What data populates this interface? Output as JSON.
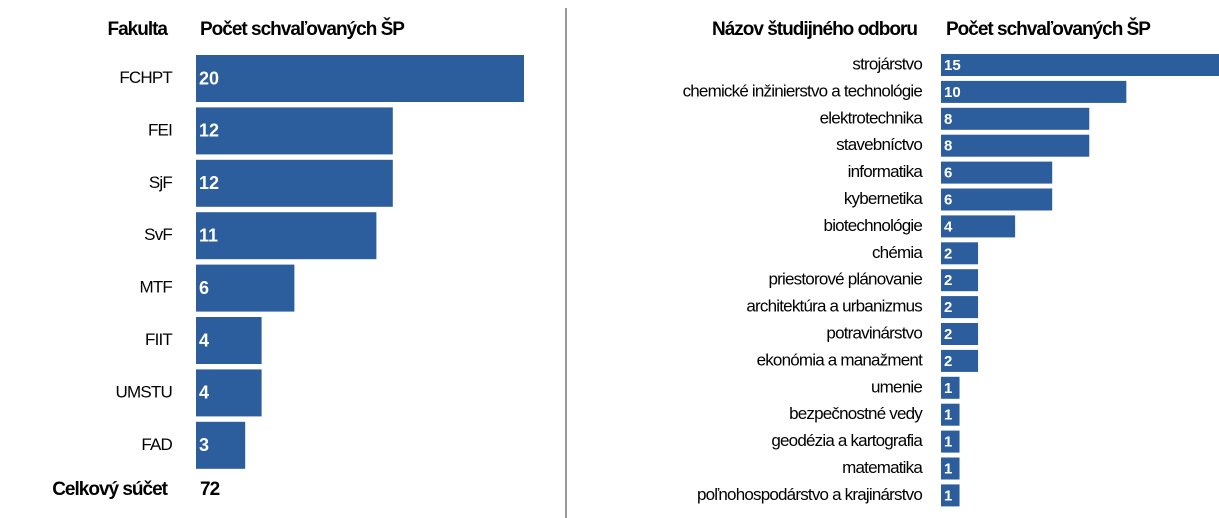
{
  "chart_data": [
    {
      "type": "bar",
      "orientation": "horizontal",
      "category_header": "Fakulta",
      "value_header": "Počet schvaľovaných ŠP",
      "categories": [
        "FCHPT",
        "FEI",
        "SjF",
        "SvF",
        "MTF",
        "FIIT",
        "UMSTU",
        "FAD"
      ],
      "values": [
        20,
        12,
        12,
        11,
        6,
        4,
        4,
        3
      ],
      "color": "#2c5d9c",
      "total_label": "Celkový súčet",
      "total": 72
    },
    {
      "type": "bar",
      "orientation": "horizontal",
      "category_header": "Názov študijného odboru",
      "value_header": "Počet schvaľovaných ŠP",
      "categories": [
        "strojárstvo",
        "chemické inžinierstvo a technológie",
        "elektrotechnika",
        "stavebníctvo",
        "informatika",
        "kybernetika",
        "biotechnológie",
        "chémia",
        "priestorové plánovanie",
        "architektúra a urbanizmus",
        "potravinárstvo",
        "ekonómia a manažment",
        "umenie",
        "bezpečnostné vedy",
        "geodézia a kartografia",
        "matematika",
        "poľnohospodárstvo a krajinárstvo"
      ],
      "values": [
        15,
        10,
        8,
        8,
        6,
        6,
        4,
        2,
        2,
        2,
        2,
        2,
        1,
        1,
        1,
        1,
        1
      ],
      "color": "#2c5d9c"
    }
  ]
}
